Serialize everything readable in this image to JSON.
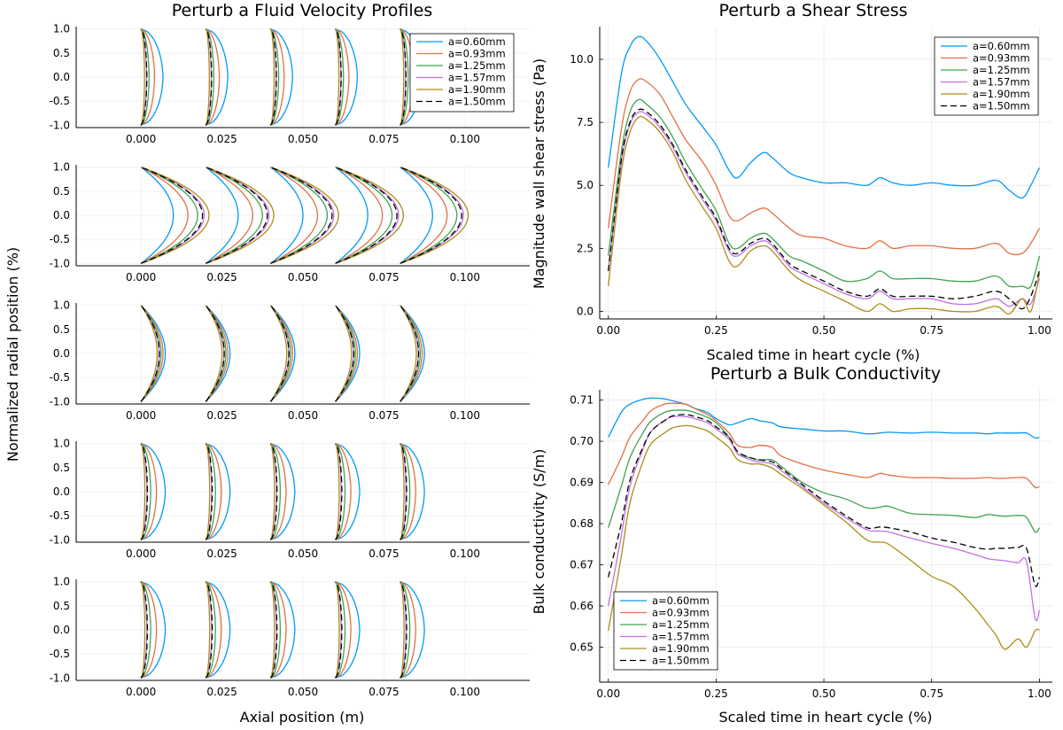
{
  "figure": {
    "colors": [
      "#009AFA",
      "#E36F47",
      "#3EA44E",
      "#C370E0",
      "#AC8E18",
      "#000000"
    ],
    "legend": [
      "a=0.60mm",
      "a=0.93mm",
      "a=1.25mm",
      "a=1.57mm",
      "a=1.90mm",
      "a=1.50mm"
    ]
  },
  "velocity": {
    "title": "Perturb a Fluid Velocity Profiles",
    "xlabel": "Axial position (m)",
    "ylabel": "Normalized radial position (%)",
    "xlim": [
      -0.02,
      0.12
    ],
    "ylim": [
      -1.05,
      1.05
    ],
    "xticks": [
      "0.000",
      "0.025",
      "0.050",
      "0.075",
      "0.100"
    ],
    "xtick_values": [
      0,
      0.025,
      0.05,
      0.075,
      0.1
    ],
    "yticks": [
      "1.0",
      "0.5",
      "0.0",
      "-0.5",
      "-1.0"
    ],
    "ytick_values": [
      1,
      0.5,
      0,
      -0.5,
      -1
    ],
    "bases": [
      0,
      0.02,
      0.04,
      0.06,
      0.08
    ],
    "panels": [
      {
        "amps": [
          0.0068,
          0.0042,
          0.0025,
          0.0017,
          0.0011,
          0.0018
        ],
        "shape": "bulge",
        "legend": true
      },
      {
        "amps": [
          0.01,
          0.0145,
          0.0175,
          0.0195,
          0.021,
          0.019
        ],
        "shape": "parabola",
        "legend": false
      },
      {
        "amps": [
          0.0075,
          0.0068,
          0.0062,
          0.0056,
          0.005,
          0.0057
        ],
        "shape": "parabola",
        "legend": false
      },
      {
        "amps": [
          0.0075,
          0.0048,
          0.003,
          0.0018,
          0.0012,
          0.002
        ],
        "shape": "bulge",
        "legend": false
      },
      {
        "amps": [
          0.0075,
          0.0048,
          0.003,
          0.0018,
          0.0012,
          0.002
        ],
        "shape": "bulge",
        "legend": false
      }
    ]
  },
  "chart_data": [
    {
      "type": "line",
      "title": "Perturb a Shear Stress",
      "xlabel": "Scaled time in heart cycle (%)",
      "ylabel": "Magnitude wall shear stress (Pa)",
      "xlim": [
        -0.02,
        1.03
      ],
      "ylim": [
        -0.3,
        11.3
      ],
      "xticks": [
        "0.00",
        "0.25",
        "0.50",
        "0.75",
        "1.00"
      ],
      "xtick_values": [
        0,
        0.25,
        0.5,
        0.75,
        1
      ],
      "yticks": [
        "10.0",
        "7.5",
        "5.0",
        "2.5",
        "0.0"
      ],
      "ytick_values": [
        10,
        7.5,
        5,
        2.5,
        0
      ],
      "legend_position": "top-right",
      "x": [
        0,
        0.03,
        0.05,
        0.07,
        0.09,
        0.12,
        0.15,
        0.18,
        0.22,
        0.25,
        0.28,
        0.3,
        0.33,
        0.36,
        0.38,
        0.42,
        0.45,
        0.5,
        0.55,
        0.6,
        0.63,
        0.66,
        0.7,
        0.75,
        0.8,
        0.85,
        0.9,
        0.93,
        0.96,
        0.98,
        1.0
      ],
      "series": [
        {
          "name": "a=0.60mm",
          "values": [
            5.7,
            9.4,
            10.5,
            10.9,
            10.7,
            10.0,
            9.1,
            8.2,
            7.3,
            6.6,
            5.6,
            5.3,
            5.9,
            6.3,
            6.1,
            5.5,
            5.3,
            5.1,
            5.1,
            5.0,
            5.3,
            5.1,
            5.0,
            5.1,
            5.0,
            5.0,
            5.2,
            4.8,
            4.5,
            5.0,
            5.7
          ]
        },
        {
          "name": "a=0.93mm",
          "values": [
            3.3,
            7.2,
            8.7,
            9.2,
            9.1,
            8.6,
            7.7,
            6.8,
            5.9,
            5.0,
            3.8,
            3.6,
            3.9,
            4.1,
            3.9,
            3.3,
            3.0,
            2.9,
            2.6,
            2.5,
            2.8,
            2.5,
            2.6,
            2.6,
            2.5,
            2.5,
            2.7,
            2.3,
            2.3,
            2.7,
            3.3
          ]
        },
        {
          "name": "a=1.25mm",
          "values": [
            2.2,
            6.3,
            7.9,
            8.4,
            8.2,
            7.7,
            6.9,
            5.9,
            4.8,
            4.0,
            2.7,
            2.5,
            2.9,
            3.1,
            2.9,
            2.2,
            2.0,
            1.6,
            1.2,
            1.3,
            1.6,
            1.3,
            1.3,
            1.3,
            1.2,
            1.2,
            1.4,
            1.0,
            1.0,
            1.0,
            2.2
          ]
        },
        {
          "name": "a=1.57mm",
          "values": [
            1.6,
            5.9,
            7.4,
            7.9,
            7.8,
            7.3,
            6.5,
            5.5,
            4.4,
            3.6,
            2.4,
            2.2,
            2.6,
            2.8,
            2.6,
            1.8,
            1.5,
            1.1,
            0.7,
            0.5,
            0.8,
            0.5,
            0.5,
            0.5,
            0.3,
            0.3,
            0.5,
            0.2,
            0.5,
            0.3,
            1.3
          ]
        },
        {
          "name": "a=1.90mm",
          "values": [
            1.0,
            5.5,
            7.1,
            7.7,
            7.6,
            7.1,
            6.3,
            5.2,
            4.1,
            3.3,
            2.0,
            1.8,
            2.4,
            2.6,
            2.4,
            1.6,
            1.2,
            0.8,
            0.4,
            0.0,
            0.3,
            0.0,
            0.1,
            0.1,
            0.0,
            0.0,
            0.2,
            -0.1,
            0.5,
            0.0,
            1.5
          ]
        },
        {
          "name": "a=1.50mm",
          "values": [
            1.6,
            6.0,
            7.5,
            8.0,
            7.9,
            7.4,
            6.6,
            5.6,
            4.5,
            3.7,
            2.5,
            2.3,
            2.7,
            2.9,
            2.7,
            1.9,
            1.6,
            1.2,
            0.8,
            0.6,
            0.9,
            0.6,
            0.6,
            0.6,
            0.5,
            0.6,
            0.8,
            0.5,
            0.1,
            0.6,
            1.6
          ]
        }
      ]
    },
    {
      "type": "line",
      "title": "Perturb a Bulk Conductivity",
      "xlabel": "Scaled time in heart cycle (%)",
      "ylabel": "Bulk conductivity (S/m)",
      "xlim": [
        -0.02,
        1.03
      ],
      "ylim": [
        0.6415,
        0.7125
      ],
      "xticks": [
        "0.00",
        "0.25",
        "0.50",
        "0.75",
        "1.00"
      ],
      "xtick_values": [
        0,
        0.25,
        0.5,
        0.75,
        1
      ],
      "yticks": [
        "0.71",
        "0.70",
        "0.69",
        "0.68",
        "0.67",
        "0.66",
        "0.65"
      ],
      "ytick_values": [
        0.71,
        0.7,
        0.69,
        0.68,
        0.67,
        0.66,
        0.65
      ],
      "legend_position": "bottom-left",
      "x": [
        0,
        0.03,
        0.05,
        0.08,
        0.1,
        0.13,
        0.15,
        0.18,
        0.2,
        0.23,
        0.25,
        0.28,
        0.3,
        0.33,
        0.35,
        0.38,
        0.4,
        0.45,
        0.5,
        0.55,
        0.6,
        0.63,
        0.65,
        0.7,
        0.75,
        0.8,
        0.85,
        0.88,
        0.9,
        0.92,
        0.95,
        0.97,
        0.99,
        1.0
      ],
      "series": [
        {
          "name": "a=0.60mm",
          "values": [
            0.701,
            0.707,
            0.709,
            0.7102,
            0.7105,
            0.7103,
            0.7098,
            0.709,
            0.708,
            0.707,
            0.7055,
            0.704,
            0.7045,
            0.7055,
            0.705,
            0.7045,
            0.7035,
            0.703,
            0.7025,
            0.7025,
            0.7018,
            0.702,
            0.7022,
            0.702,
            0.7022,
            0.702,
            0.702,
            0.7018,
            0.702,
            0.702,
            0.702,
            0.702,
            0.7008,
            0.701
          ]
        },
        {
          "name": "a=0.93mm",
          "values": [
            0.6895,
            0.696,
            0.701,
            0.705,
            0.7075,
            0.709,
            0.7092,
            0.709,
            0.708,
            0.7065,
            0.705,
            0.702,
            0.699,
            0.6985,
            0.699,
            0.6985,
            0.6965,
            0.6945,
            0.693,
            0.692,
            0.6912,
            0.6922,
            0.6918,
            0.6912,
            0.6912,
            0.691,
            0.691,
            0.6912,
            0.691,
            0.691,
            0.6912,
            0.691,
            0.6888,
            0.689
          ]
        },
        {
          "name": "a=1.25mm",
          "values": [
            0.679,
            0.689,
            0.696,
            0.702,
            0.705,
            0.707,
            0.7075,
            0.7075,
            0.707,
            0.7058,
            0.7045,
            0.701,
            0.697,
            0.696,
            0.6955,
            0.6955,
            0.694,
            0.69,
            0.6875,
            0.686,
            0.6838,
            0.684,
            0.6842,
            0.6825,
            0.6822,
            0.682,
            0.6815,
            0.6822,
            0.682,
            0.6818,
            0.682,
            0.6815,
            0.678,
            0.679
          ]
        },
        {
          "name": "a=1.57mm",
          "values": [
            0.66,
            0.677,
            0.689,
            0.698,
            0.7025,
            0.705,
            0.706,
            0.706,
            0.7055,
            0.7045,
            0.703,
            0.7005,
            0.697,
            0.6955,
            0.695,
            0.6945,
            0.693,
            0.689,
            0.685,
            0.6815,
            0.6785,
            0.6782,
            0.678,
            0.6765,
            0.6752,
            0.674,
            0.6725,
            0.6715,
            0.6712,
            0.671,
            0.6705,
            0.6708,
            0.657,
            0.659
          ]
        },
        {
          "name": "a=1.90mm",
          "values": [
            0.654,
            0.672,
            0.685,
            0.695,
            0.6995,
            0.702,
            0.7033,
            0.7038,
            0.7035,
            0.7025,
            0.701,
            0.6985,
            0.6955,
            0.6945,
            0.6945,
            0.6935,
            0.692,
            0.6885,
            0.6845,
            0.6805,
            0.676,
            0.6755,
            0.675,
            0.6712,
            0.6672,
            0.6648,
            0.6595,
            0.6555,
            0.6528,
            0.6495,
            0.652,
            0.65,
            0.654,
            0.6542
          ]
        },
        {
          "name": "a=1.50mm",
          "values": [
            0.667,
            0.68,
            0.6905,
            0.6985,
            0.7025,
            0.705,
            0.7062,
            0.7065,
            0.706,
            0.705,
            0.7035,
            0.701,
            0.6975,
            0.696,
            0.6955,
            0.695,
            0.6935,
            0.6895,
            0.6855,
            0.682,
            0.679,
            0.6792,
            0.679,
            0.678,
            0.6765,
            0.6755,
            0.6742,
            0.6738,
            0.674,
            0.674,
            0.6742,
            0.674,
            0.665,
            0.667
          ]
        }
      ]
    }
  ]
}
